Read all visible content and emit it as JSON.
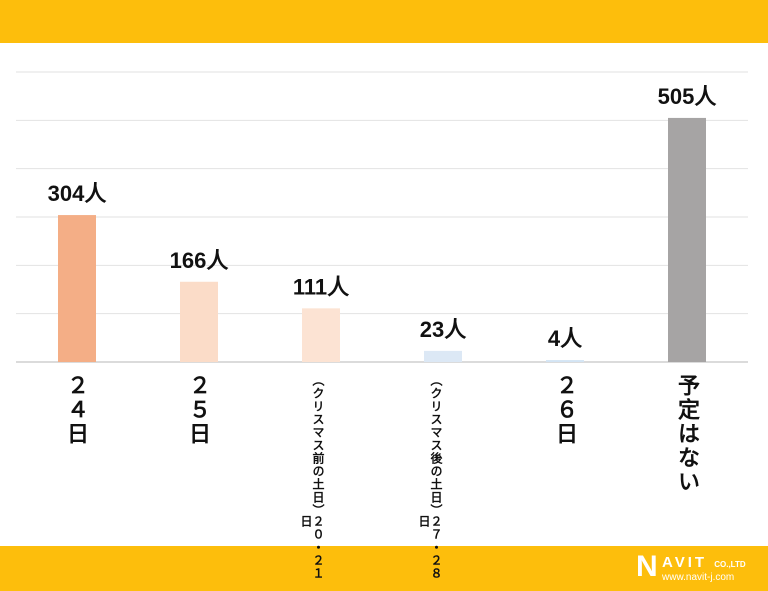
{
  "chart_data": {
    "type": "bar",
    "title": "",
    "xlabel": "",
    "ylabel": "",
    "ylim": [
      0,
      600
    ],
    "grid": true,
    "categories": [
      "２４日",
      "２５日",
      "２０・２１日（クリスマス前の土日）",
      "２７・２８日（クリスマス後の土日）",
      "２６日",
      "予定はない"
    ],
    "values": [
      304,
      166,
      111,
      23,
      4,
      505
    ],
    "data_labels": [
      "304人",
      "166人",
      "111人",
      "23人",
      "4人",
      "505人"
    ],
    "colors": [
      "#f4ae86",
      "#fbdcc8",
      "#fce3d3",
      "#dce8f5",
      "#d3e4f4",
      "#a6a4a4"
    ]
  },
  "xlabels": {
    "l0": "２４日",
    "l1": "２５日",
    "l2a": "２０・２１日",
    "l2b": "（クリスマス前の土日）",
    "l3a": "２７・２８日",
    "l3b": "（クリスマス後の土日）",
    "l4": "２６日",
    "l5": "予定はない"
  },
  "logo": {
    "name": "NAVIT",
    "suffix": "CO.,LTD",
    "url": "www.navit-j.com"
  },
  "colors": {
    "band": "#fdbe0c"
  }
}
